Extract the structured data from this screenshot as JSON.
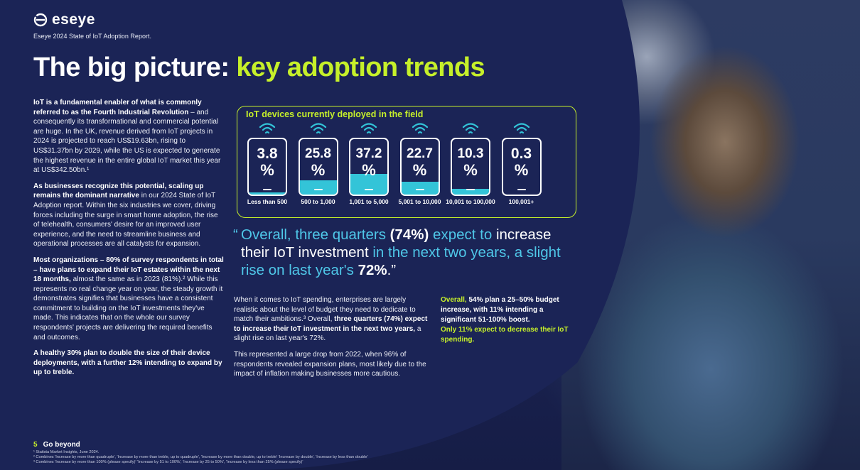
{
  "brand": {
    "logo_text": "eseye",
    "report_title": "Eseye 2024 State of IoT Adoption Report."
  },
  "heading": {
    "plain": "The big picture: ",
    "accent": "key adoption trends"
  },
  "left_column": {
    "p1_bold": "IoT is a fundamental enabler of what is commonly referred to as the Fourth Industrial Revolution",
    "p1_rest": " – and consequently its transformational and commercial potential are huge. In the UK, revenue derived from IoT projects in 2024 is projected to reach US$19.63bn, rising to US$31.37bn by 2029, while the US is expected to generate the highest revenue in the entire global IoT market this year at US$342.50bn.¹",
    "p2_bold": "As businesses recognize this potential, scaling up remains the dominant narrative",
    "p2_rest": " in our 2024 State of IoT Adoption report. Within the six industries we cover, driving forces including the surge in smart home adoption, the rise of telehealth, consumers' desire for an improved user experience, and the need to streamline business and operational processes are all catalysts for expansion.",
    "p3_bold": "Most organizations – 80% of survey respondents in total – have plans to expand their IoT estates within the next 18 months,",
    "p3_rest": " almost the same as in 2023 (81%).² While this represents no real change year on year, the steady growth it demonstrates signifies that businesses have a consistent commitment to building on the IoT investments they've made. This indicates that on the whole our survey respondents' projects are delivering the required benefits and outcomes.",
    "p4_bold": "A healthy 30% plan to double the size of their device deployments, with a further 12% intending to expand by up to treble."
  },
  "chart_data": {
    "type": "bar",
    "title": "IoT devices currently deployed in the field",
    "categories": [
      "Less than 500",
      "500 to 1,000",
      "1,001 to 5,000",
      "5,001 to 10,000",
      "10,001 to 100,000",
      "100,001+"
    ],
    "values": [
      3.8,
      25.8,
      37.2,
      22.7,
      10.3,
      0.3
    ],
    "value_labels": [
      "3.8",
      "25.8",
      "37.2",
      "22.7",
      "10.3",
      "0.3"
    ],
    "unit": "%",
    "ylim": [
      0,
      100
    ],
    "colors": {
      "fill": "#33c4d8",
      "accent": "#c6f02a"
    }
  },
  "quote": {
    "open": "“",
    "t1": "Overall, three quarters ",
    "b1": "(74%)",
    "t2": " expect to ",
    "w1": "increase their IoT investment",
    "t3": " in the next two years, a slight rise on last year's ",
    "b2": "72%",
    "close": ".”"
  },
  "middle_column": {
    "p1_a": "When it comes to IoT spending, enterprises are largely realistic about the level of budget they need to dedicate to match their ambitions.³ Overall, ",
    "p1_bold": "three quarters (74%) expect to increase their IoT investment in the next two years,",
    "p1_b": " a slight rise on last year's 72%.",
    "p2": "This represented a large drop from 2022, when 96% of respondents revealed expansion plans, most likely due to the impact of inflation making businesses more cautious."
  },
  "right_note": {
    "acc1": "Overall,",
    "text1": " 54% plan a 25–50% budget increase, with 11% intending a significant 51-100% boost.",
    "acc2": "Only 11% expect to decrease their IoT spending."
  },
  "footer": {
    "page_number": "5",
    "section": "Go beyond",
    "fn1": "¹ Statista Market Insights, June 2024.",
    "fn2": "² Combines 'Increase by more than quadruple', 'Increase by more than treble, up to quadruple', 'Increase by more than double, up to treble' 'Increase by double', 'Increase by less than double'",
    "fn3": "³ Combines 'Increase by more than 100% (please specify)' 'Increase by 51 to 100%', 'Increase by 25 to 50%', 'Increase by less than 25% (please specify)'"
  }
}
